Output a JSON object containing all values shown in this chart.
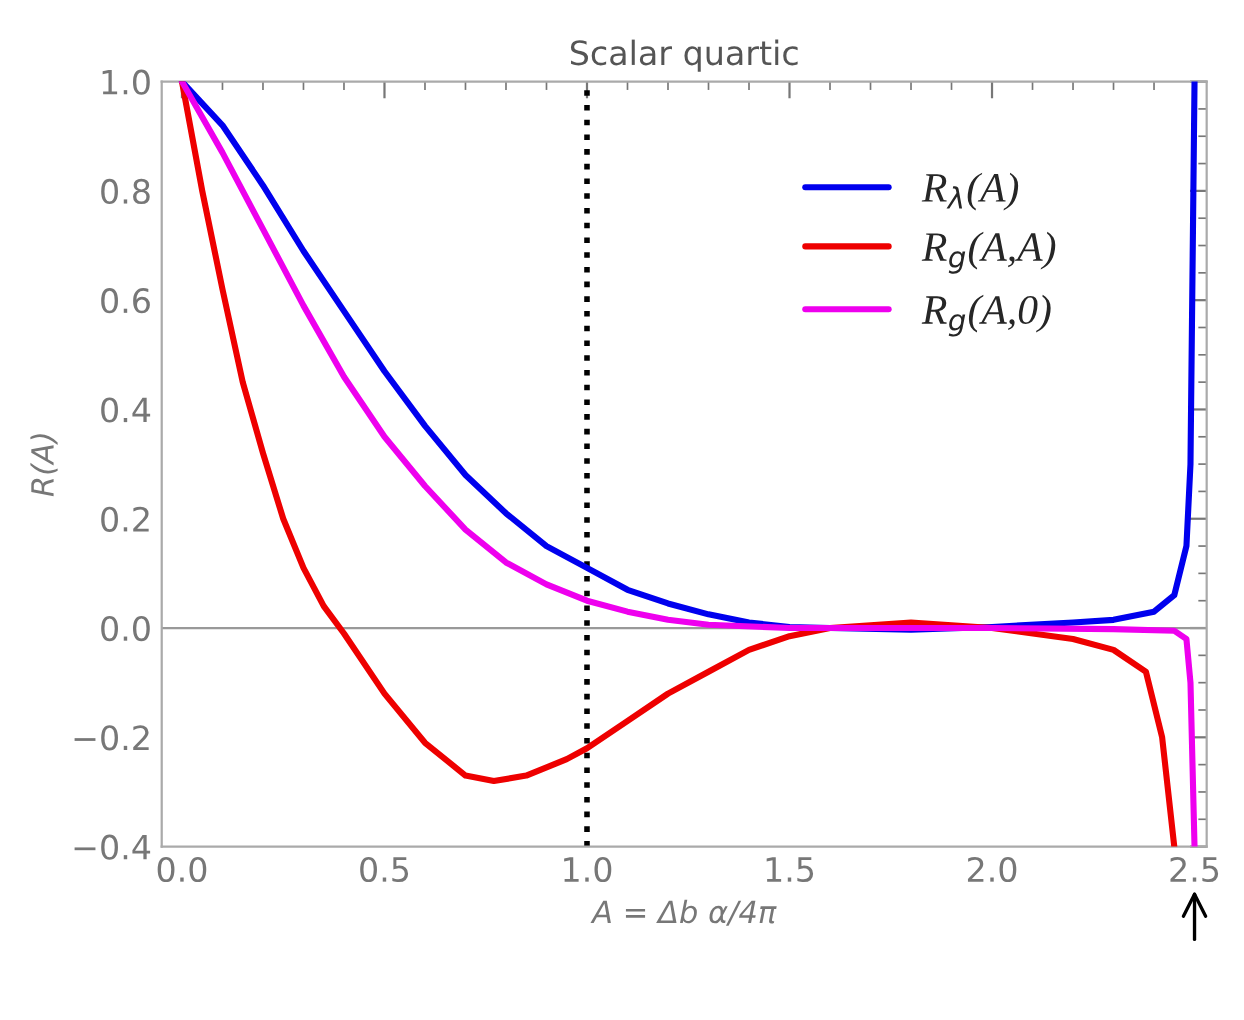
{
  "chart_data": {
    "type": "line",
    "title": "Scalar quartic",
    "xlabel": "A = Δb α/4π",
    "ylabel": "R(A)",
    "xlim": [
      -0.05,
      2.53
    ],
    "ylim": [
      -0.4,
      1.0
    ],
    "xticks": [
      {
        "value": 0,
        "label": "0.0"
      },
      {
        "value": 0.5,
        "label": "0.5"
      },
      {
        "value": 1,
        "label": "1.0"
      },
      {
        "value": 1.5,
        "label": "1.5"
      },
      {
        "value": 2,
        "label": "2.0"
      },
      {
        "value": 2.5,
        "label": "2.5"
      }
    ],
    "yticks": [
      {
        "value": -0.4,
        "label": "−0.4"
      },
      {
        "value": -0.2,
        "label": "−0.2"
      },
      {
        "value": 0,
        "label": "0.0"
      },
      {
        "value": 0.2,
        "label": "0.2"
      },
      {
        "value": 0.4,
        "label": "0.4"
      },
      {
        "value": 0.6,
        "label": "0.6"
      },
      {
        "value": 0.8,
        "label": "0.8"
      },
      {
        "value": 1,
        "label": "1.0"
      }
    ],
    "grid": false,
    "legend": "top right",
    "marker": "none",
    "line_style": "solid",
    "ref_lines": [
      {
        "axis": "x",
        "value": 1,
        "color": "#000000",
        "line_style": "dotted"
      },
      {
        "axis": "y",
        "value": 0,
        "color": "#999999",
        "line_style": "solid"
      }
    ],
    "series": [
      {
        "name": "R$_{λ}$(A)",
        "color": "#0000ee",
        "x": [
          0,
          0.1,
          0.2,
          0.3,
          0.4,
          0.5,
          0.6,
          0.7,
          0.8,
          0.9,
          1.0,
          1.1,
          1.2,
          1.3,
          1.4,
          1.5,
          1.6,
          1.8,
          2.0,
          2.2,
          2.3,
          2.4,
          2.45,
          2.48,
          2.49,
          2.5
        ],
        "values": [
          1,
          0.92,
          0.81,
          0.69,
          0.58,
          0.47,
          0.37,
          0.28,
          0.21,
          0.15,
          0.11,
          0.07,
          0.045,
          0.025,
          0.01,
          0.002,
          0,
          -0.003,
          0.002,
          0.01,
          0.015,
          0.03,
          0.06,
          0.15,
          0.3,
          1.0
        ]
      },
      {
        "name": "R$_{g}$(A,A)",
        "color": "#ee0000",
        "x": [
          0,
          0.05,
          0.1,
          0.15,
          0.2,
          0.25,
          0.3,
          0.35,
          0.4,
          0.5,
          0.6,
          0.7,
          0.77,
          0.85,
          0.95,
          1.0,
          1.1,
          1.2,
          1.3,
          1.4,
          1.5,
          1.6,
          1.8,
          2.0,
          2.2,
          2.3,
          2.38,
          2.42,
          2.45
        ],
        "values": [
          1,
          0.8,
          0.62,
          0.45,
          0.32,
          0.2,
          0.11,
          0.04,
          -0.01,
          -0.12,
          -0.21,
          -0.27,
          -0.28,
          -0.27,
          -0.24,
          -0.22,
          -0.17,
          -0.12,
          -0.08,
          -0.04,
          -0.015,
          0,
          0.01,
          0,
          -0.02,
          -0.04,
          -0.08,
          -0.2,
          -0.4
        ]
      },
      {
        "name": "R$_{g}$(A,0)",
        "color": "#ee00ee",
        "x": [
          0,
          0.1,
          0.2,
          0.3,
          0.4,
          0.5,
          0.6,
          0.7,
          0.8,
          0.9,
          1.0,
          1.1,
          1.2,
          1.3,
          1.5,
          2.0,
          2.3,
          2.45,
          2.48,
          2.49,
          2.5
        ],
        "values": [
          1,
          0.87,
          0.73,
          0.59,
          0.46,
          0.35,
          0.26,
          0.18,
          0.12,
          0.08,
          0.05,
          0.03,
          0.015,
          0.006,
          0,
          0,
          -0.002,
          -0.005,
          -0.02,
          -0.1,
          -0.4
        ]
      }
    ]
  }
}
